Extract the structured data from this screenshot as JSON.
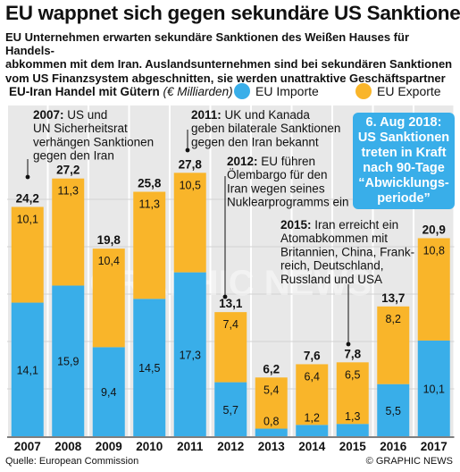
{
  "title": "EU wappnet sich gegen sekundäre US Sanktionen",
  "subtitle_lines": [
    "EU Unternehmen erwarten sekundäre Sanktionen des Weißen Hauses für Handels-",
    "abkommen mit dem Iran. Auslandsunternehmen sind bei sekundären Sanktionen",
    "vom US Finanzsystem abgeschnitten, sie werden unattraktive Geschäftspartner"
  ],
  "legend": {
    "title": "EU-Iran Handel mit Gütern",
    "unit": "(€ Milliarden)",
    "imports_label": "EU Importe",
    "exports_label": "EU Exporte"
  },
  "colors": {
    "imports": "#39aee9",
    "exports": "#f9b52a",
    "callout": "#39aee9",
    "panel": "#e8e8e8",
    "grid": "#d2d2d2"
  },
  "callout_lines": [
    "6. Aug 2018:",
    "US Sanktionen",
    "treten in Kraft",
    "nach 90-Tage",
    "“Abwicklungs-",
    "periode”"
  ],
  "annotations": [
    {
      "year": "2007",
      "lines": [
        "2007: US und",
        "UN Sicherheitsrat",
        "verhängen Sanktionen",
        "gegen den Iran"
      ]
    },
    {
      "year": "2011",
      "lines": [
        "2011: UK und Kanada",
        "geben bilaterale Sanktionen",
        "gegen den Iran bekannt"
      ]
    },
    {
      "year": "2012",
      "lines": [
        "2012: EU führen",
        "Ölembargo für den",
        "Iran wegen seines",
        "Nuklearprogramms ein"
      ]
    },
    {
      "year": "2015",
      "lines": [
        "2015: Iran erreicht ein",
        "Atomabkommen mit",
        "Britannien, China, Frank-",
        "reich, Deutschland,",
        "Russland und USA"
      ]
    }
  ],
  "watermark": "GRAPHIC NEWS",
  "source": "Quelle: European Commission",
  "credit": "© GRAPHIC NEWS",
  "chart_data": {
    "type": "bar",
    "stacked": true,
    "categories": [
      "2007",
      "2008",
      "2009",
      "2010",
      "2011",
      "2012",
      "2013",
      "2014",
      "2015",
      "2016",
      "2017"
    ],
    "series": [
      {
        "name": "EU Importe",
        "values": [
          14.1,
          15.9,
          9.4,
          14.5,
          17.3,
          5.7,
          0.8,
          1.2,
          1.3,
          5.5,
          10.1
        ]
      },
      {
        "name": "EU Exporte",
        "values": [
          10.1,
          11.3,
          10.4,
          11.3,
          10.5,
          7.4,
          5.4,
          6.4,
          6.5,
          8.2,
          10.8
        ]
      }
    ],
    "totals": [
      24.2,
      27.2,
      19.8,
      25.8,
      27.8,
      13.1,
      6.2,
      7.6,
      7.8,
      13.7,
      20.9
    ],
    "ylim": [
      0,
      30
    ],
    "grid": true,
    "legend": "top"
  }
}
